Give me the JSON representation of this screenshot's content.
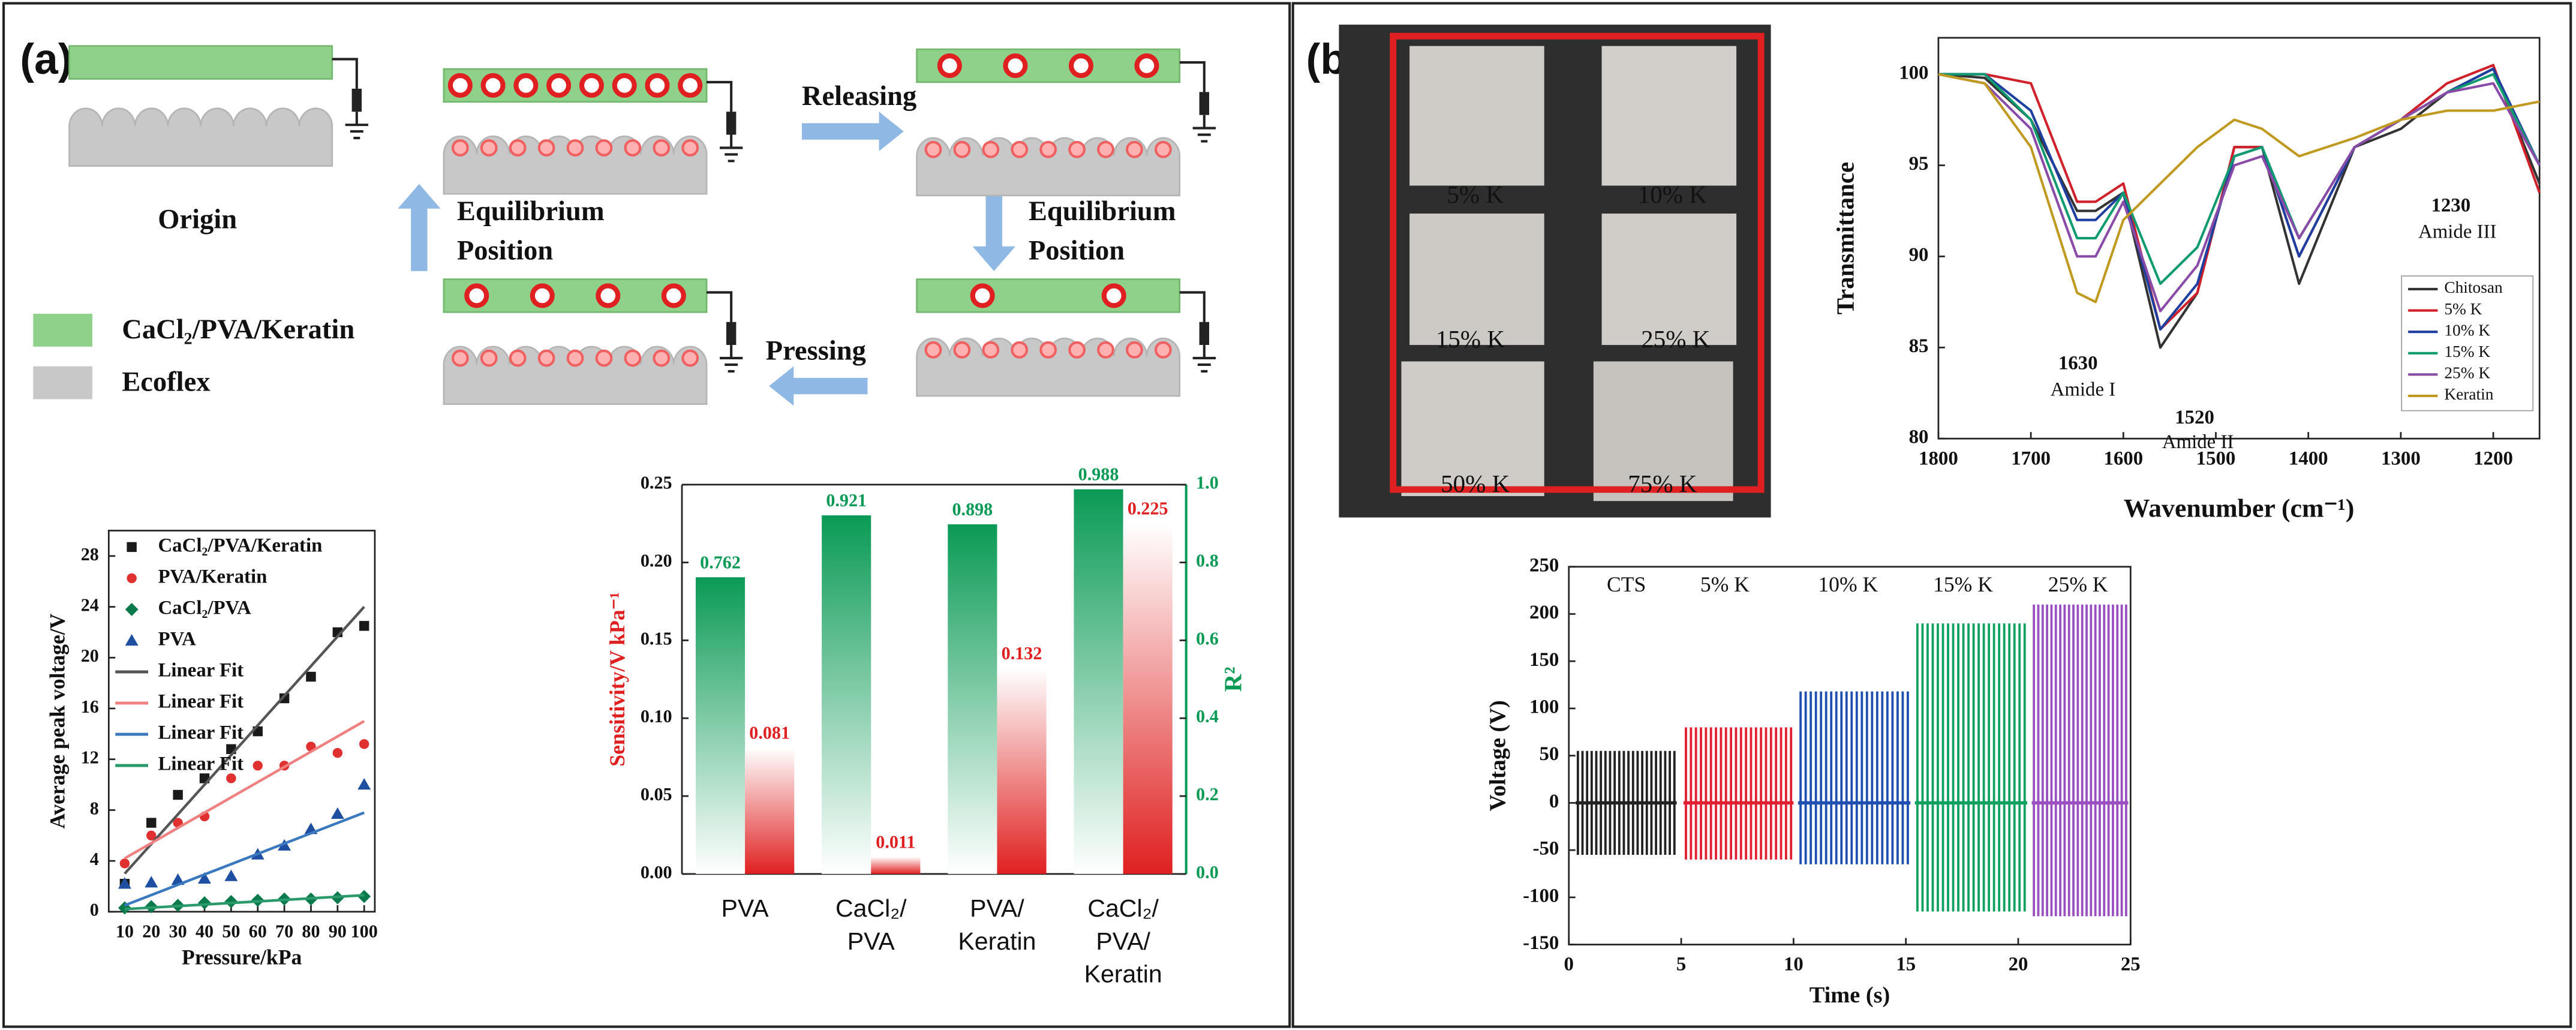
{
  "panels": [
    "(a)",
    "(b)"
  ],
  "diagram": {
    "states": [
      "Origin",
      "Releasing",
      "Equilibrium Position",
      "Pressing",
      "Equilibrium Position"
    ],
    "legend": [
      "CaCl₂/PVA/Keratin",
      "Ecoflex"
    ]
  },
  "photo": {
    "labels": [
      "5% K",
      "10% K",
      "15% K",
      "25% K",
      "50% K",
      "75% K"
    ]
  },
  "chart_data": [
    {
      "type": "scatter",
      "xlabel": "Pressure/kPa",
      "ylabel": "Average peak voltage/V",
      "xlim": [
        4,
        104
      ],
      "ylim": [
        0,
        30
      ],
      "xticks": [
        10,
        20,
        30,
        40,
        50,
        60,
        70,
        80,
        90,
        100
      ],
      "yticks": [
        0,
        4,
        8,
        12,
        16,
        20,
        24,
        28
      ],
      "series": [
        {
          "name": "CaCl₂/PVA/Keratin",
          "color": "#1a1a1a",
          "marker": "square",
          "x": [
            10,
            20,
            30,
            40,
            50,
            60,
            70,
            80,
            90,
            100
          ],
          "values": [
            2.2,
            7,
            9.2,
            10.5,
            12.8,
            14.2,
            16.8,
            18.5,
            22,
            22.5
          ]
        },
        {
          "name": "PVA/Keratin",
          "color": "#e03030",
          "marker": "circle",
          "x": [
            10,
            20,
            30,
            40,
            50,
            60,
            70,
            80,
            90,
            100
          ],
          "values": [
            3.8,
            6,
            7,
            7.5,
            10.5,
            11.5,
            11.5,
            13,
            12.5,
            13.2
          ]
        },
        {
          "name": "CaCl₂/PVA",
          "color": "#0a7a4a",
          "marker": "diamond",
          "x": [
            10,
            20,
            30,
            40,
            50,
            60,
            70,
            80,
            90,
            100
          ],
          "values": [
            0.3,
            0.4,
            0.5,
            0.7,
            0.8,
            0.9,
            1,
            1,
            1.1,
            1.2
          ]
        },
        {
          "name": "PVA",
          "color": "#1f4fa0",
          "marker": "triangle",
          "x": [
            10,
            20,
            30,
            40,
            50,
            60,
            70,
            80,
            90,
            100
          ],
          "values": [
            2.2,
            2.3,
            2.5,
            2.6,
            2.8,
            4.5,
            5.2,
            6.5,
            7.7,
            10
          ]
        },
        {
          "name": "Linear Fit",
          "color": "#555555",
          "marker": "line",
          "x": [
            10,
            100
          ],
          "values": [
            3,
            24
          ]
        },
        {
          "name": "Linear Fit",
          "color": "#f08080",
          "marker": "line",
          "x": [
            10,
            100
          ],
          "values": [
            4.2,
            15
          ]
        },
        {
          "name": "Linear Fit",
          "color": "#3a78c0",
          "marker": "line",
          "x": [
            10,
            100
          ],
          "values": [
            0.5,
            7.8
          ]
        },
        {
          "name": "Linear Fit",
          "color": "#2a9a6a",
          "marker": "line",
          "x": [
            10,
            100
          ],
          "values": [
            0.2,
            1.3
          ]
        }
      ]
    },
    {
      "type": "bar",
      "ylabel": "Sensitivity/V kPa⁻¹",
      "y2label": "R²",
      "categories": [
        "PVA",
        "CaCl₂/PVA",
        "PVA/Keratin",
        "CaCl₂/PVA/Keratin"
      ],
      "ylim": [
        0,
        0.25
      ],
      "y2lim": [
        0,
        1.0
      ],
      "yticks": [
        {
          "value": 0,
          "label": "0.00"
        },
        0.05,
        {
          "value": 0.1,
          "label": "0.10"
        },
        0.15,
        {
          "value": 0.2,
          "label": "0.20"
        },
        0.25
      ],
      "y2ticks": [
        {
          "value": 0,
          "label": "0.0"
        },
        0.2,
        0.4,
        0.6,
        0.8,
        {
          "value": 1,
          "label": "1.0"
        }
      ],
      "series": [
        {
          "color": "#0a9a55",
          "axis": "y2",
          "values": [
            0.762,
            0.921,
            0.898,
            0.988
          ]
        },
        {
          "color": "#e02020",
          "values": [
            0.081,
            0.011,
            0.132,
            0.225
          ]
        }
      ]
    },
    {
      "type": "line",
      "xlabel": "Wavenumber (cm⁻¹)",
      "ylabel": "Transmittance",
      "xlim": [
        1800,
        1150
      ],
      "ylim": [
        80,
        102
      ],
      "xticks": [
        1800,
        1700,
        1600,
        1500,
        1400,
        1300,
        1200
      ],
      "yticks": [
        80,
        85,
        90,
        95,
        100
      ],
      "x": [
        1800,
        1750,
        1700,
        1650,
        1630,
        1600,
        1560,
        1520,
        1480,
        1450,
        1410,
        1350,
        1300,
        1250,
        1200,
        1150
      ],
      "series": [
        {
          "name": "Chitosan",
          "color": "#333333",
          "values": [
            100,
            99.8,
            97.5,
            92.5,
            92.5,
            93.5,
            85,
            88,
            96,
            96,
            88.5,
            96,
            97,
            99,
            100.3,
            94
          ]
        },
        {
          "name": "5% K",
          "color": "#d0202a",
          "values": [
            100,
            100,
            99.5,
            93,
            93,
            94,
            86,
            88,
            96,
            96,
            90,
            96,
            97.5,
            99.5,
            100.5,
            93.5
          ]
        },
        {
          "name": "10% K",
          "color": "#1f3fa0",
          "values": [
            100,
            100,
            98,
            92,
            92,
            93.5,
            86,
            88.5,
            95.5,
            96,
            90,
            96,
            97.5,
            99,
            100.3,
            95
          ]
        },
        {
          "name": "15% K",
          "color": "#109a70",
          "values": [
            100,
            100,
            97.5,
            91,
            91,
            93.5,
            88.5,
            90.5,
            95.5,
            96,
            91,
            96,
            97.5,
            99,
            100,
            95
          ]
        },
        {
          "name": "25% K",
          "color": "#8a4aa8",
          "values": [
            100,
            99.5,
            97,
            90,
            90,
            93,
            87,
            89.5,
            95,
            95.5,
            91,
            96,
            97.5,
            99,
            99.5,
            95
          ]
        },
        {
          "name": "Keratin",
          "color": "#c09a20",
          "values": [
            100,
            99.5,
            96,
            88,
            87.5,
            92,
            94,
            96,
            97.5,
            97,
            95.5,
            96.5,
            97.5,
            98,
            98,
            98.5
          ]
        }
      ],
      "annotations": [
        "1630",
        "Amide I",
        "1520",
        "Amide II",
        "1230",
        "Amide III"
      ]
    },
    {
      "type": "spike",
      "xlabel": "Time (s)",
      "ylabel": "Voltage (V)",
      "xlim": [
        0,
        25
      ],
      "ylim": [
        -150,
        250
      ],
      "xticks": [
        0,
        5,
        10,
        15,
        20,
        25
      ],
      "yticks": [
        -150,
        -100,
        -50,
        0,
        50,
        100,
        150,
        200,
        250
      ],
      "series": [
        {
          "name": "CTS",
          "color": "#222222",
          "x": [
            0.3,
            4.8
          ],
          "values": [
            55,
            -55
          ]
        },
        {
          "name": "5% K",
          "color": "#e02030",
          "x": [
            5.1,
            10
          ],
          "values": [
            80,
            -60
          ]
        },
        {
          "name": "10% K",
          "color": "#1f4fb0",
          "x": [
            10.2,
            15.2
          ],
          "values": [
            118,
            -65
          ]
        },
        {
          "name": "15% K",
          "color": "#10a060",
          "x": [
            15.4,
            20.4
          ],
          "values": [
            190,
            -115
          ]
        },
        {
          "name": "25% K",
          "color": "#9a50c0",
          "x": [
            20.6,
            24.9
          ],
          "values": [
            210,
            -120
          ]
        }
      ]
    }
  ]
}
